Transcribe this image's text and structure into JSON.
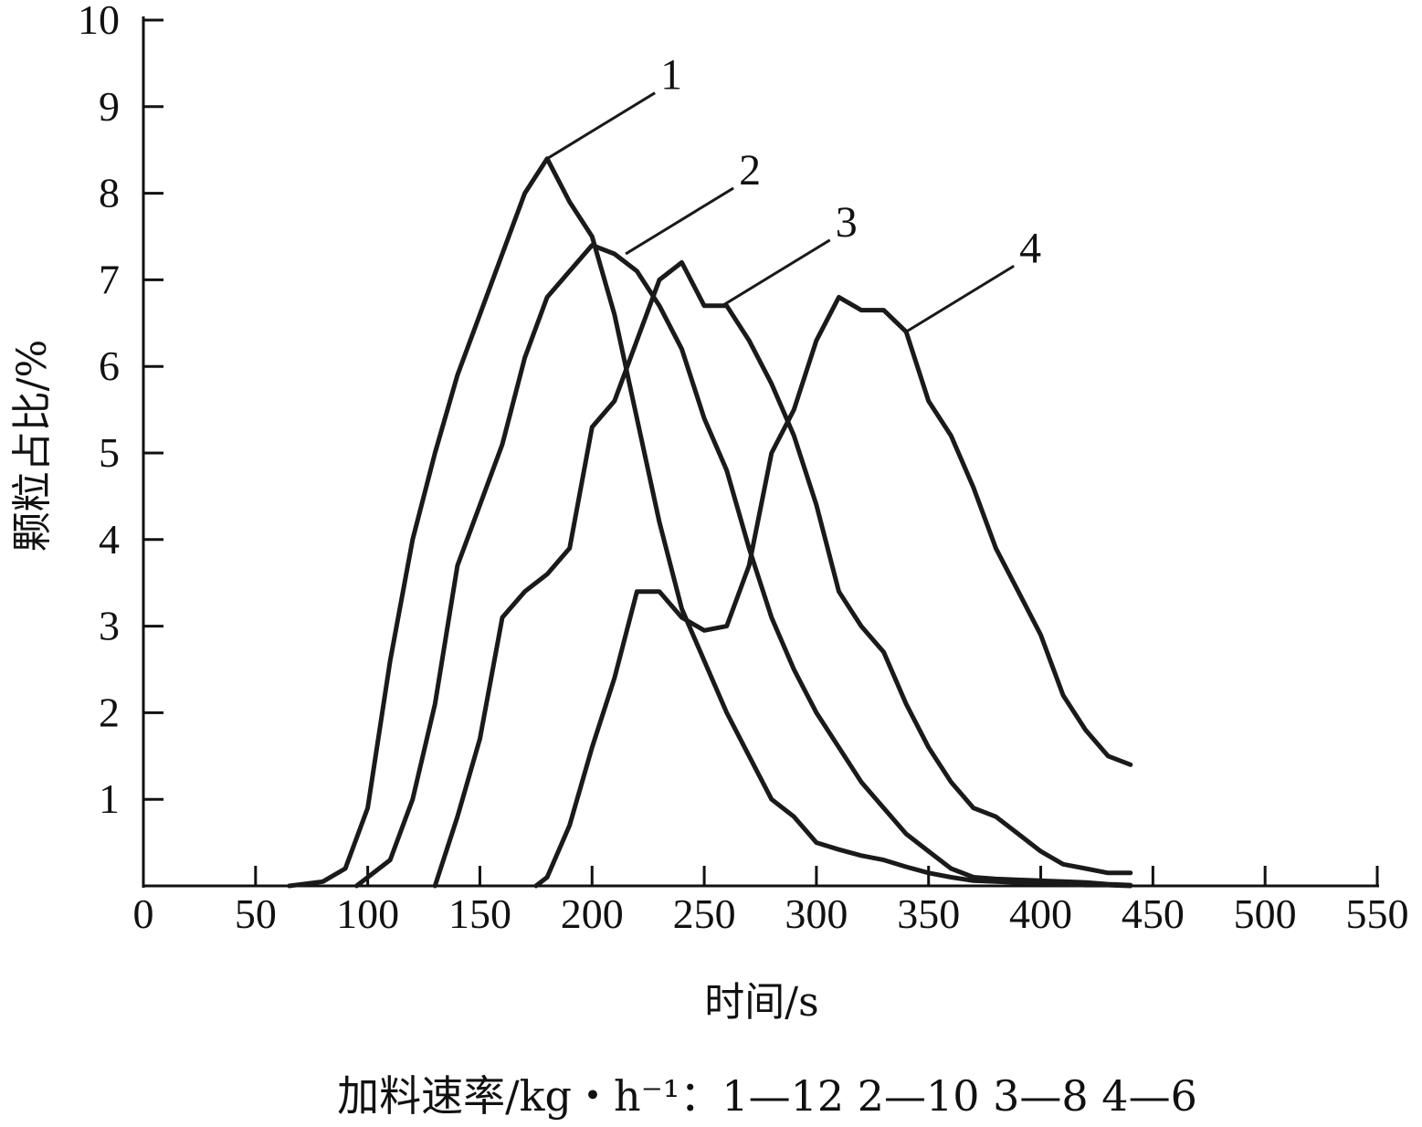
{
  "chart_data": {
    "type": "line",
    "xlabel": "时间/s",
    "ylabel": "颗粒占比/%",
    "xlim": [
      0,
      550
    ],
    "ylim": [
      0,
      10
    ],
    "x_ticks": [
      "0",
      "50",
      "100",
      "150",
      "200",
      "250",
      "300",
      "350",
      "400",
      "450",
      "500",
      "550"
    ],
    "y_ticks": [
      "1",
      "2",
      "3",
      "4",
      "5",
      "6",
      "7",
      "8",
      "9",
      "10"
    ],
    "grid": false,
    "series": [
      {
        "name": "1",
        "x": [
          65,
          80,
          90,
          100,
          110,
          120,
          130,
          140,
          150,
          160,
          170,
          180,
          190,
          200,
          210,
          220,
          230,
          240,
          250,
          260,
          270,
          280,
          290,
          300,
          310,
          320,
          330,
          340,
          350,
          360,
          370,
          380,
          390,
          400,
          410,
          420,
          430,
          440
        ],
        "y": [
          0,
          0.05,
          0.2,
          0.9,
          2.6,
          4.0,
          5.0,
          5.9,
          6.6,
          7.3,
          8.0,
          8.4,
          7.9,
          7.5,
          6.6,
          5.4,
          4.2,
          3.2,
          2.6,
          2.0,
          1.5,
          1.0,
          0.8,
          0.5,
          0.42,
          0.35,
          0.3,
          0.22,
          0.15,
          0.1,
          0.06,
          0.05,
          0.04,
          0.03,
          0.02,
          0.01,
          0.01,
          0
        ]
      },
      {
        "name": "2",
        "x": [
          95,
          110,
          120,
          130,
          140,
          150,
          160,
          170,
          180,
          190,
          200,
          210,
          220,
          230,
          240,
          250,
          260,
          270,
          280,
          290,
          300,
          310,
          320,
          330,
          340,
          350,
          360,
          370,
          380,
          390,
          400,
          410,
          420,
          430,
          440
        ],
        "y": [
          0,
          0.3,
          1.0,
          2.1,
          3.7,
          4.4,
          5.1,
          6.1,
          6.8,
          7.1,
          7.4,
          7.3,
          7.1,
          6.7,
          6.2,
          5.4,
          4.8,
          3.9,
          3.1,
          2.5,
          2.0,
          1.6,
          1.2,
          0.9,
          0.6,
          0.4,
          0.2,
          0.1,
          0.08,
          0.07,
          0.06,
          0.05,
          0.04,
          0.02,
          0.01
        ]
      },
      {
        "name": "3",
        "x": [
          130,
          140,
          150,
          160,
          170,
          180,
          190,
          200,
          210,
          220,
          230,
          240,
          250,
          260,
          270,
          280,
          290,
          300,
          310,
          320,
          330,
          340,
          350,
          360,
          370,
          380,
          390,
          400,
          410,
          420,
          430,
          440
        ],
        "y": [
          0,
          0.8,
          1.7,
          3.1,
          3.4,
          3.6,
          3.9,
          5.3,
          5.6,
          6.3,
          7.0,
          7.2,
          6.7,
          6.7,
          6.3,
          5.8,
          5.2,
          4.4,
          3.4,
          3.0,
          2.7,
          2.1,
          1.6,
          1.2,
          0.9,
          0.8,
          0.6,
          0.4,
          0.25,
          0.2,
          0.15,
          0.15
        ]
      },
      {
        "name": "4",
        "x": [
          175,
          180,
          190,
          200,
          210,
          220,
          230,
          240,
          250,
          260,
          270,
          280,
          290,
          300,
          310,
          320,
          330,
          340,
          350,
          360,
          370,
          380,
          390,
          400,
          410,
          420,
          430,
          440
        ],
        "y": [
          0,
          0.1,
          0.7,
          1.6,
          2.4,
          3.4,
          3.4,
          3.1,
          2.95,
          3.0,
          3.7,
          5.0,
          5.5,
          6.3,
          6.8,
          6.65,
          6.65,
          6.4,
          5.6,
          5.2,
          4.6,
          3.9,
          3.4,
          2.9,
          2.2,
          1.8,
          1.5,
          1.4
        ]
      }
    ],
    "annotations": [
      {
        "series": "1",
        "text": "1",
        "at_x": 180,
        "at_y": 8.4
      },
      {
        "series": "2",
        "text": "2",
        "at_x": 215,
        "at_y": 7.3
      },
      {
        "series": "3",
        "text": "3",
        "at_x": 258,
        "at_y": 6.7
      },
      {
        "series": "4",
        "text": "4",
        "at_x": 340,
        "at_y": 6.4
      }
    ],
    "caption": "加料速率/kg・h⁻¹：1—12    2—10    3—8    4—6"
  }
}
